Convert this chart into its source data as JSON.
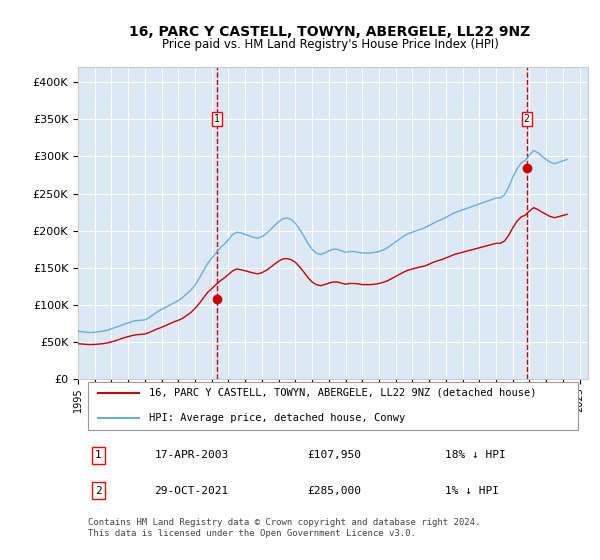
{
  "title": "16, PARC Y CASTELL, TOWYN, ABERGELE, LL22 9NZ",
  "subtitle": "Price paid vs. HM Land Registry's House Price Index (HPI)",
  "ylabel_ticks": [
    "£0",
    "£50K",
    "£100K",
    "£150K",
    "£200K",
    "£250K",
    "£300K",
    "£350K",
    "£400K"
  ],
  "ytick_values": [
    0,
    50000,
    100000,
    150000,
    200000,
    250000,
    300000,
    350000,
    400000
  ],
  "ylim": [
    0,
    420000
  ],
  "xlim_start": 1995.0,
  "xlim_end": 2025.5,
  "background_color": "#dce9f5",
  "plot_bg_color": "#dce9f5",
  "grid_color": "#ffffff",
  "hpi_color": "#6baed6",
  "price_color": "#cc0000",
  "transaction1_date": "17-APR-2003",
  "transaction1_price": 107950,
  "transaction1_year": 2003.29,
  "transaction2_date": "29-OCT-2021",
  "transaction2_price": 285000,
  "transaction2_year": 2021.83,
  "legend_line1": "16, PARC Y CASTELL, TOWYN, ABERGELE, LL22 9NZ (detached house)",
  "legend_line2": "HPI: Average price, detached house, Conwy",
  "table_row1": [
    "1",
    "17-APR-2003",
    "£107,950",
    "18% ↓ HPI"
  ],
  "table_row2": [
    "2",
    "29-OCT-2021",
    "£285,000",
    "1% ↓ HPI"
  ],
  "footer": "Contains HM Land Registry data © Crown copyright and database right 2024.\nThis data is licensed under the Open Government Licence v3.0.",
  "hpi_data": {
    "years": [
      1995.0,
      1995.25,
      1995.5,
      1995.75,
      1996.0,
      1996.25,
      1996.5,
      1996.75,
      1997.0,
      1997.25,
      1997.5,
      1997.75,
      1998.0,
      1998.25,
      1998.5,
      1998.75,
      1999.0,
      1999.25,
      1999.5,
      1999.75,
      2000.0,
      2000.25,
      2000.5,
      2000.75,
      2001.0,
      2001.25,
      2001.5,
      2001.75,
      2002.0,
      2002.25,
      2002.5,
      2002.75,
      2003.0,
      2003.25,
      2003.5,
      2003.75,
      2004.0,
      2004.25,
      2004.5,
      2004.75,
      2005.0,
      2005.25,
      2005.5,
      2005.75,
      2006.0,
      2006.25,
      2006.5,
      2006.75,
      2007.0,
      2007.25,
      2007.5,
      2007.75,
      2008.0,
      2008.25,
      2008.5,
      2008.75,
      2009.0,
      2009.25,
      2009.5,
      2009.75,
      2010.0,
      2010.25,
      2010.5,
      2010.75,
      2011.0,
      2011.25,
      2011.5,
      2011.75,
      2012.0,
      2012.25,
      2012.5,
      2012.75,
      2013.0,
      2013.25,
      2013.5,
      2013.75,
      2014.0,
      2014.25,
      2014.5,
      2014.75,
      2015.0,
      2015.25,
      2015.5,
      2015.75,
      2016.0,
      2016.25,
      2016.5,
      2016.75,
      2017.0,
      2017.25,
      2017.5,
      2017.75,
      2018.0,
      2018.25,
      2018.5,
      2018.75,
      2019.0,
      2019.25,
      2019.5,
      2019.75,
      2020.0,
      2020.25,
      2020.5,
      2020.75,
      2021.0,
      2021.25,
      2021.5,
      2021.75,
      2022.0,
      2022.25,
      2022.5,
      2022.75,
      2023.0,
      2023.25,
      2023.5,
      2023.75,
      2024.0,
      2024.25
    ],
    "values": [
      65000,
      64000,
      63500,
      63000,
      63500,
      64000,
      65000,
      66000,
      68000,
      70000,
      72000,
      74000,
      76000,
      78000,
      79000,
      79500,
      80000,
      83000,
      87000,
      91000,
      94000,
      97000,
      100000,
      103000,
      106000,
      110000,
      115000,
      120000,
      127000,
      136000,
      146000,
      156000,
      163000,
      170000,
      177000,
      182000,
      188000,
      195000,
      198000,
      197000,
      195000,
      193000,
      191000,
      190000,
      192000,
      196000,
      201000,
      207000,
      212000,
      216000,
      217000,
      215000,
      210000,
      202000,
      193000,
      183000,
      175000,
      170000,
      168000,
      170000,
      173000,
      175000,
      175000,
      173000,
      171000,
      172000,
      172000,
      171000,
      170000,
      170000,
      170000,
      171000,
      172000,
      174000,
      177000,
      181000,
      185000,
      189000,
      193000,
      196000,
      198000,
      200000,
      202000,
      204000,
      207000,
      210000,
      213000,
      215000,
      218000,
      221000,
      224000,
      226000,
      228000,
      230000,
      232000,
      234000,
      236000,
      238000,
      240000,
      242000,
      244000,
      244000,
      248000,
      258000,
      272000,
      283000,
      291000,
      295000,
      302000,
      308000,
      305000,
      300000,
      296000,
      292000,
      290000,
      292000,
      294000,
      296000
    ]
  },
  "price_data": {
    "years": [
      1995.0,
      1995.25,
      1995.5,
      1995.75,
      1996.0,
      1996.25,
      1996.5,
      1996.75,
      1997.0,
      1997.25,
      1997.5,
      1997.75,
      1998.0,
      1998.25,
      1998.5,
      1998.75,
      1999.0,
      1999.25,
      1999.5,
      1999.75,
      2000.0,
      2000.25,
      2000.5,
      2000.75,
      2001.0,
      2001.25,
      2001.5,
      2001.75,
      2002.0,
      2002.25,
      2002.5,
      2002.75,
      2003.0,
      2003.25,
      2003.5,
      2003.75,
      2004.0,
      2004.25,
      2004.5,
      2004.75,
      2005.0,
      2005.25,
      2005.5,
      2005.75,
      2006.0,
      2006.25,
      2006.5,
      2006.75,
      2007.0,
      2007.25,
      2007.5,
      2007.75,
      2008.0,
      2008.25,
      2008.5,
      2008.75,
      2009.0,
      2009.25,
      2009.5,
      2009.75,
      2010.0,
      2010.25,
      2010.5,
      2010.75,
      2011.0,
      2011.25,
      2011.5,
      2011.75,
      2012.0,
      2012.25,
      2012.5,
      2012.75,
      2013.0,
      2013.25,
      2013.5,
      2013.75,
      2014.0,
      2014.25,
      2014.5,
      2014.75,
      2015.0,
      2015.25,
      2015.5,
      2015.75,
      2016.0,
      2016.25,
      2016.5,
      2016.75,
      2017.0,
      2017.25,
      2017.5,
      2017.75,
      2018.0,
      2018.25,
      2018.5,
      2018.75,
      2019.0,
      2019.25,
      2019.5,
      2019.75,
      2020.0,
      2020.25,
      2020.5,
      2020.75,
      2021.0,
      2021.25,
      2021.5,
      2021.75,
      2022.0,
      2022.25,
      2022.5,
      2022.75,
      2023.0,
      2023.25,
      2023.5,
      2023.75,
      2024.0,
      2024.25
    ],
    "values": [
      48000,
      47500,
      47000,
      46800,
      47000,
      47500,
      48000,
      49000,
      50500,
      52000,
      54000,
      56000,
      57500,
      59000,
      60000,
      60500,
      61000,
      63000,
      65500,
      68000,
      70000,
      72500,
      75000,
      77500,
      79500,
      82000,
      86000,
      90000,
      95500,
      102000,
      109500,
      117000,
      122000,
      127500,
      132500,
      136500,
      141000,
      146000,
      148500,
      147500,
      146000,
      144500,
      143000,
      142000,
      143500,
      146500,
      150500,
      155000,
      159000,
      162000,
      162500,
      161000,
      157500,
      151500,
      144500,
      137000,
      131000,
      127500,
      126000,
      127500,
      129500,
      131000,
      131000,
      129500,
      128000,
      129000,
      129000,
      128500,
      127500,
      127500,
      127500,
      128000,
      129000,
      130500,
      132500,
      135500,
      138500,
      141500,
      144500,
      147000,
      148500,
      150000,
      151500,
      152500,
      155000,
      157500,
      159500,
      161000,
      163500,
      165500,
      168000,
      169500,
      171000,
      172500,
      174000,
      175500,
      177000,
      178500,
      180000,
      181500,
      183000,
      183000,
      186000,
      193500,
      204000,
      212500,
      218500,
      221000,
      226500,
      231000,
      228500,
      225000,
      222000,
      219000,
      217500,
      219000,
      220500,
      222000
    ]
  }
}
